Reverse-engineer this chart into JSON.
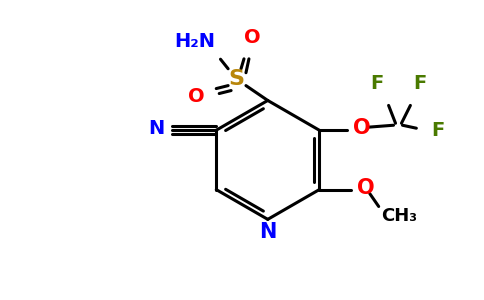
{
  "bg_color": "#ffffff",
  "colors": {
    "N": "#0000ff",
    "O": "#ff0000",
    "S": "#b8860b",
    "F": "#4a7a00",
    "C": "#000000"
  },
  "figsize": [
    4.84,
    3.0
  ],
  "dpi": 100,
  "bw": 2.2
}
